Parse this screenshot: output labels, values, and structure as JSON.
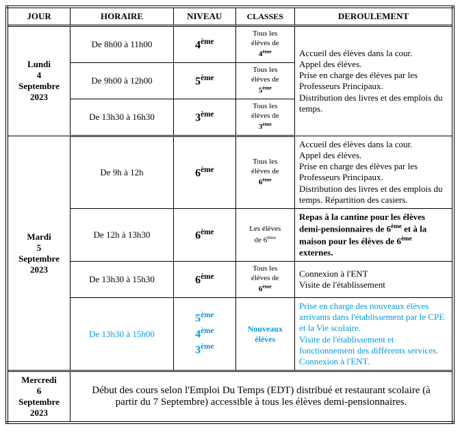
{
  "colors": {
    "accent_blue": "#0099e5",
    "text": "#000000",
    "background": "#ffffff"
  },
  "headers": {
    "jour": "JOUR",
    "horaire": "HORAIRE",
    "niveau": "NIVEAU",
    "classes": "CLASSES",
    "deroulement": "DEROULEMENT"
  },
  "lundi": {
    "label": "Lundi\n4\nSeptembre\n2023",
    "r1": {
      "horaire": "De 8h00 à 11h00",
      "niveau_n": "4",
      "niveau_suf": "ème",
      "classes_a": "Tous les",
      "classes_b": "élèves de",
      "classes_n": "4",
      "classes_suf": "ème"
    },
    "r2": {
      "horaire": "De 9h00 à 12h00",
      "niveau_n": "5",
      "niveau_suf": "ème",
      "classes_a": "Tous les",
      "classes_b": "élèves de",
      "classes_n": "5",
      "classes_suf": "ème"
    },
    "r3": {
      "horaire": "De 13h30 à 16h30",
      "niveau_n": "3",
      "niveau_suf": "ème",
      "classes_a": "Tous les",
      "classes_b": "élèves de",
      "classes_n": "3",
      "classes_suf": "ème"
    },
    "deroulement": "Accueil des élèves dans la cour.\nAppel des élèves.\nPrise en charge des élèves par les Professeurs Principaux.\nDistribution des livres et des emplois du temps."
  },
  "mardi": {
    "label": "Mardi\n5\nSeptembre\n2023",
    "r1": {
      "horaire": "De 9h à 12h",
      "niveau_n": "6",
      "niveau_suf": "ème",
      "classes_a": "Tous les",
      "classes_b": "élèves de",
      "classes_n": "6",
      "classes_suf": "ème",
      "deroulement": "Accueil des élèves dans la cour.\nAppel des élèves.\nPrise en charge des élèves par les Professeurs Principaux.\nDistribution des livres et des emplois du temps. Répartition des casiers."
    },
    "r2": {
      "horaire": "De 12h à 13h30",
      "niveau_n": "6",
      "niveau_suf": "ème",
      "classes_a": "Les élèves",
      "classes_b": "de 6",
      "classes_suf": "ème",
      "d_pre": "Repas à la cantine pour les élèves demi-pensionnaires de 6",
      "d_suf1": "ème",
      "d_mid": " et à la maison pour les élèves de 6",
      "d_suf2": "ème",
      "d_post": " externes."
    },
    "r3": {
      "horaire": "De 13h30 à 15h30",
      "niveau_n": "6",
      "niveau_suf": "ème",
      "classes_a": "Tous les",
      "classes_b": "élèves de",
      "classes_n": "6",
      "classes_suf": "ème",
      "deroulement": "Connexion à l'ENT\nVisite de l'établissement"
    },
    "r4": {
      "horaire": "De 13h30 à 15h00",
      "niv1_n": "5",
      "niv1_suf": "ème",
      "niv2_n": "4",
      "niv2_suf": "ème",
      "niv3_n": "3",
      "niv3_suf": "ème",
      "classes_a": "Nouveaux",
      "classes_b": "élèves",
      "deroulement": "Prise en charge des nouveaux élèves arrivants dans l'établissement par le CPE et la Vie scolaire.\nVisite de l'établissement et fonctionnement des différents services.\nConnexion à l'ENT."
    }
  },
  "mercredi": {
    "label": "Mercredi\n6\nSeptembre\n2023",
    "text": "Début des cours selon l'Emploi Du Temps (EDT) distribué et restaurant scolaire (à partir du 7 Septembre) accessible à tous les élèves demi-pensionnaires."
  }
}
